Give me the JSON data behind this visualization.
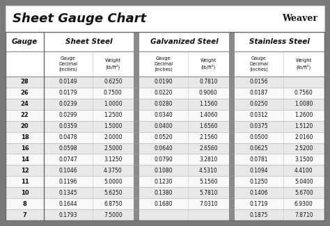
{
  "title": "Sheet Gauge Chart",
  "background_outer": "#7a7a7a",
  "background_inner": "#ffffff",
  "row_bg_odd": "#e8e8e8",
  "row_bg_even": "#f8f8f8",
  "gauges": [
    28,
    26,
    24,
    22,
    20,
    18,
    16,
    14,
    12,
    11,
    10,
    8,
    7
  ],
  "sheet_steel": {
    "decimal": [
      "0.0149",
      "0.0179",
      "0.0239",
      "0.0299",
      "0.0359",
      "0.0478",
      "0.0598",
      "0.0747",
      "0.1046",
      "0.1196",
      "0.1345",
      "0.1644",
      "0.1793"
    ],
    "weight": [
      "0.6250",
      "0.7500",
      "1.0000",
      "1.2500",
      "1.5000",
      "2.0000",
      "2.5000",
      "3.1250",
      "4.3750",
      "5.0000",
      "5.6250",
      "6.8750",
      "7.5000"
    ]
  },
  "galvanized_steel": {
    "decimal": [
      "0.0190",
      "0.0220",
      "0.0280",
      "0.0340",
      "0.0400",
      "0.0520",
      "0.0640",
      "0.0790",
      "0.1080",
      "0.1230",
      "0.1380",
      "0.1680",
      ""
    ],
    "weight": [
      "0.7810",
      "0.9060",
      "1.1560",
      "1.4060",
      "1.6560",
      "2.1560",
      "2.6560",
      "3.2810",
      "4.5310",
      "5.1560",
      "5.7810",
      "7.0310",
      ""
    ]
  },
  "stainless_steel": {
    "decimal": [
      "0.0156",
      "0.0187",
      "0.0250",
      "0.0312",
      "0.0375",
      "0.0500",
      "0.0625",
      "0.0781",
      "0.1094",
      "0.1250",
      "0.1406",
      "0.1719",
      "0.1875"
    ],
    "weight": [
      "",
      "0.7560",
      "1.0080",
      "1.2600",
      "1.5120",
      "2.0160",
      "2.5200",
      "3.1500",
      "4.4100",
      "5.0400",
      "5.6700",
      "6.9300",
      "7.8710"
    ]
  },
  "col_headers": [
    "Sheet Steel",
    "Galvanized Steel",
    "Stainless Steel"
  ],
  "gauge_label": "Gauge",
  "sub_dec": "Gauge\nDecimal\n(inches)",
  "sub_wt": "Weight\n(lb/ft²)"
}
